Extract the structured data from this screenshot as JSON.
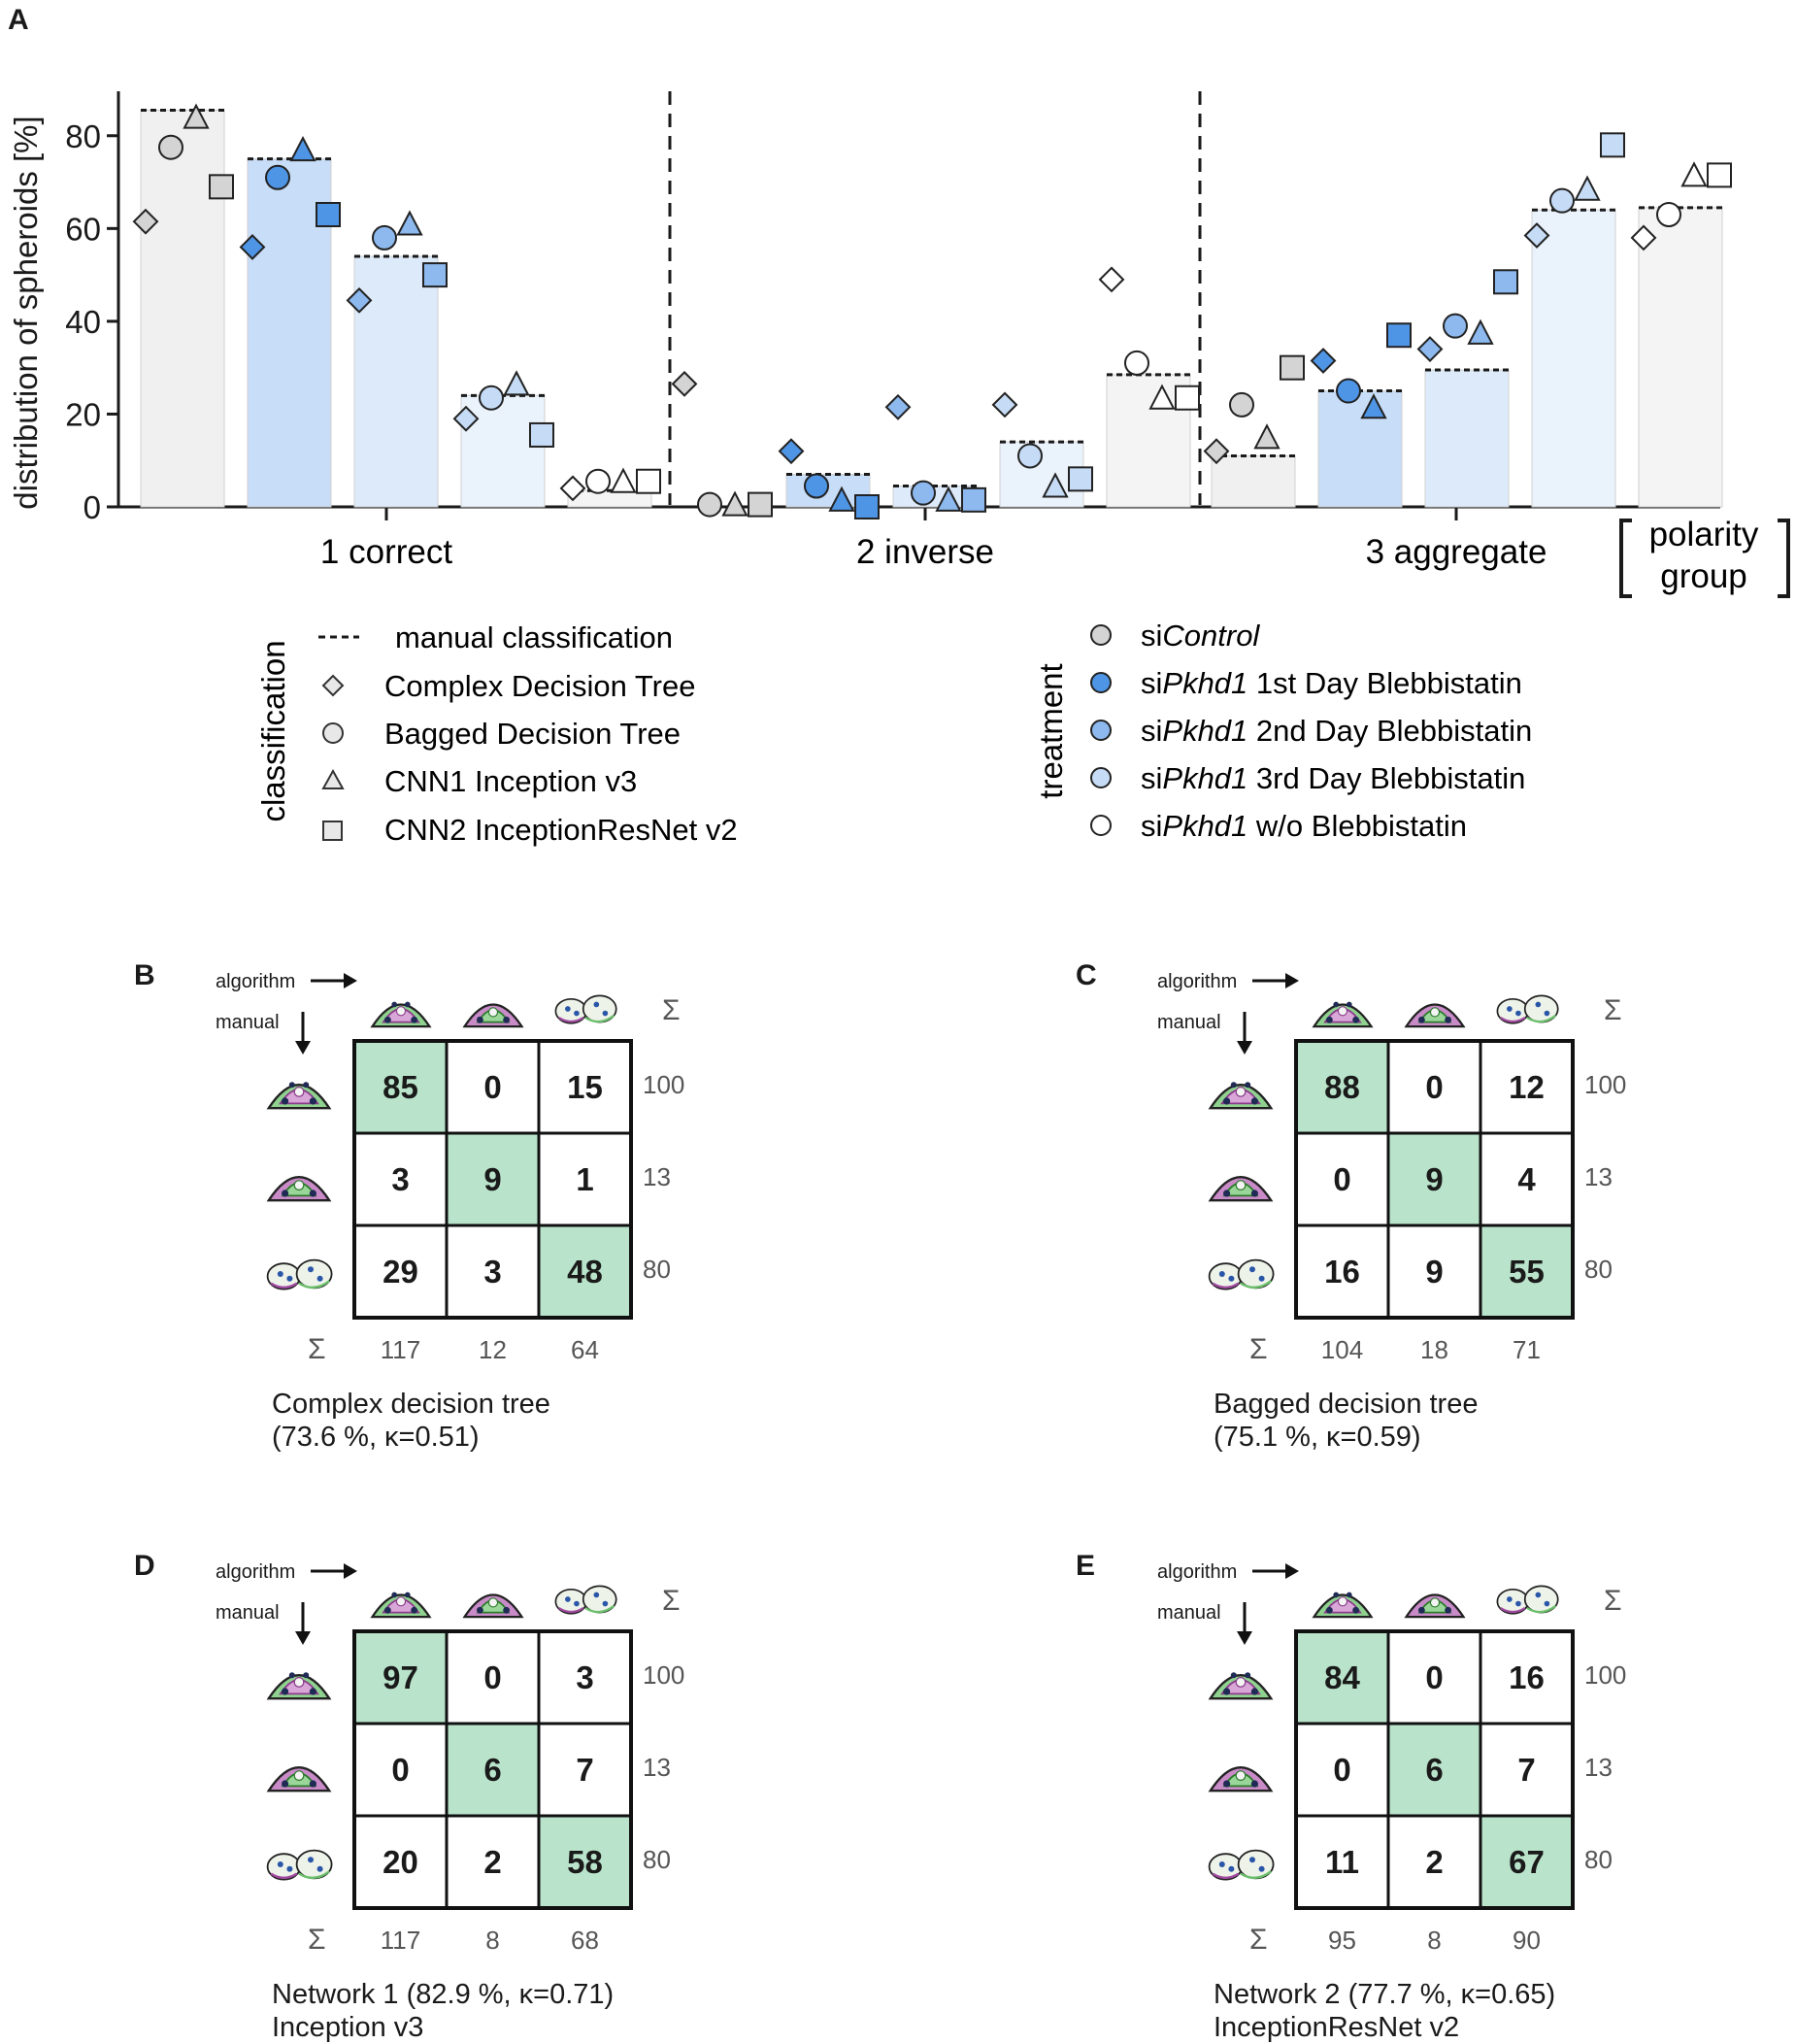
{
  "panel_letters": {
    "a": "A",
    "b": "B",
    "c": "C",
    "d": "D",
    "e": "E"
  },
  "chart_data": {
    "type": "bar",
    "ylabel": "distribution of spheroids [%]",
    "ylim": [
      0,
      90
    ],
    "yticks": [
      "0",
      "20",
      "40",
      "60",
      "80"
    ],
    "groups": [
      "1 correct",
      "2 inverse",
      "3 aggregate"
    ],
    "group_axis_label_top": "polarity",
    "group_axis_label_bottom": "group",
    "treatments": [
      "siControl",
      "siPkhd1 1st Day Blebbistatin",
      "siPkhd1 2nd Day Blebbistatin",
      "siPkhd1 3rd Day Blebbistatin",
      "siPkhd1 w/o Blebbistatin"
    ],
    "treatment_colors": [
      "#d4d4d4",
      "#4f95e6",
      "#8db9ef",
      "#c6dcf6",
      "#ffffff"
    ],
    "bar_colors": [
      "#f0f0f0",
      "#c8ddf7",
      "#ddeafa",
      "#eaf2fc",
      "#f4f4f4"
    ],
    "manual_bars": [
      [
        85.5,
        75,
        54,
        24,
        3.5
      ],
      [
        0,
        7,
        4.5,
        14,
        28.5
      ],
      [
        11,
        25,
        29.5,
        64,
        64.5
      ]
    ],
    "series": [
      {
        "name": "Complex Decision Tree",
        "marker": "diamond",
        "values": [
          [
            61.5,
            56,
            44.5,
            19,
            4
          ],
          [
            26.5,
            12,
            21.5,
            22,
            49
          ],
          [
            12,
            31.5,
            34,
            58.5,
            58
          ]
        ]
      },
      {
        "name": "Bagged Decision Tree",
        "marker": "circle",
        "values": [
          [
            77.5,
            71,
            58,
            23.5,
            5.5
          ],
          [
            0.5,
            4.5,
            3,
            11,
            31
          ],
          [
            22,
            25,
            39,
            66,
            63
          ]
        ]
      },
      {
        "name": "CNN1 Inception v3",
        "marker": "triangle",
        "values": [
          [
            84,
            77,
            61,
            26.5,
            5.5
          ],
          [
            0.5,
            1.5,
            1.5,
            4.5,
            23.5
          ],
          [
            15,
            21.5,
            37.5,
            68.5,
            71.5
          ]
        ]
      },
      {
        "name": "CNN2 InceptionResNet v2",
        "marker": "square",
        "values": [
          [
            69,
            63,
            50,
            15.5,
            5.5
          ],
          [
            0.5,
            0,
            1.5,
            6,
            23.5
          ],
          [
            30,
            37,
            48.5,
            78,
            71.5
          ]
        ]
      }
    ]
  },
  "legend_classification": {
    "title": "classification",
    "items": [
      "manual classification",
      "Complex Decision Tree",
      "Bagged Decision Tree",
      "CNN1 Inception v3",
      "CNN2 InceptionResNet v2"
    ]
  },
  "legend_treatment": {
    "title": "treatment",
    "items": [
      {
        "prefix": "si",
        "italic": "Control",
        "suffix": ""
      },
      {
        "prefix": "si",
        "italic": "Pkhd1",
        "suffix": " 1st Day Blebbistatin"
      },
      {
        "prefix": "si",
        "italic": "Pkhd1",
        "suffix": " 2nd Day Blebbistatin"
      },
      {
        "prefix": "si",
        "italic": "Pkhd1",
        "suffix": " 3rd Day Blebbistatin"
      },
      {
        "prefix": "si",
        "italic": "Pkhd1",
        "suffix": " w/o Blebbistatin"
      }
    ]
  },
  "matrix_labels": {
    "algorithm": "algorithm",
    "manual": "manual",
    "sigma": "Σ"
  },
  "matrices": [
    {
      "values": [
        [
          "85",
          "0",
          "15"
        ],
        [
          "3",
          "9",
          "1"
        ],
        [
          "29",
          "3",
          "48"
        ]
      ],
      "row_sums": [
        "100",
        "13",
        "80"
      ],
      "col_sums": [
        "117",
        "12",
        "64"
      ],
      "caption1": "Complex decision tree",
      "caption2": "(73.6 %, κ=0.51)"
    },
    {
      "values": [
        [
          "88",
          "0",
          "12"
        ],
        [
          "0",
          "9",
          "4"
        ],
        [
          "16",
          "9",
          "55"
        ]
      ],
      "row_sums": [
        "100",
        "13",
        "80"
      ],
      "col_sums": [
        "104",
        "18",
        "71"
      ],
      "caption1": "Bagged decision tree",
      "caption2": "(75.1 %, κ=0.59)"
    },
    {
      "values": [
        [
          "97",
          "0",
          "3"
        ],
        [
          "0",
          "6",
          "7"
        ],
        [
          "20",
          "2",
          "58"
        ]
      ],
      "row_sums": [
        "100",
        "13",
        "80"
      ],
      "col_sums": [
        "117",
        "8",
        "68"
      ],
      "caption1": "Network 1 (82.9 %, κ=0.71)",
      "caption2": "Inception v3"
    },
    {
      "values": [
        [
          "84",
          "0",
          "16"
        ],
        [
          "0",
          "6",
          "7"
        ],
        [
          "11",
          "2",
          "67"
        ]
      ],
      "row_sums": [
        "100",
        "13",
        "80"
      ],
      "col_sums": [
        "95",
        "8",
        "90"
      ],
      "caption1": "Network 2 (77.7 %, κ=0.65)",
      "caption2": "InceptionResNet v2"
    }
  ]
}
